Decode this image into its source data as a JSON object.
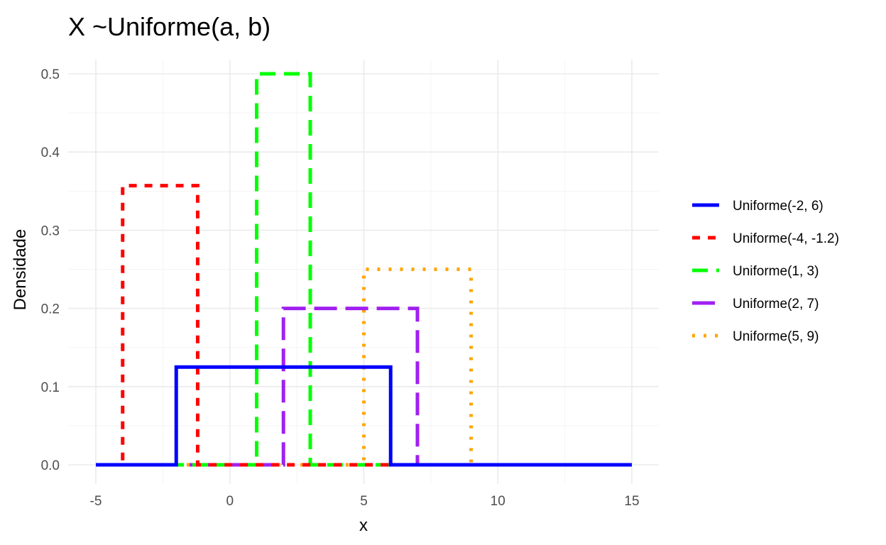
{
  "chart_data": {
    "type": "line",
    "title": "X ~Uniforme(a, b)",
    "xlabel": "x",
    "ylabel": "Densidade",
    "xlim": [
      -5,
      15
    ],
    "ylim": [
      0,
      0.5
    ],
    "x_ticks": [
      -5,
      0,
      5,
      10,
      15
    ],
    "y_ticks": [
      0.0,
      0.1,
      0.2,
      0.3,
      0.4,
      0.5
    ],
    "x_tick_labels": [
      "-5",
      "0",
      "5",
      "10",
      "15"
    ],
    "y_tick_labels": [
      "0.0",
      "0.1",
      "0.2",
      "0.3",
      "0.4",
      "0.5"
    ],
    "grid": true,
    "legend_position": "right",
    "series": [
      {
        "name": "Uniforme(-2, 6)",
        "a": -2,
        "b": 6,
        "density": 0.125,
        "color": "#0000ff",
        "linetype": "solid"
      },
      {
        "name": "Uniforme(-4, -1.2)",
        "a": -4,
        "b": -1.2,
        "density": 0.357,
        "color": "#ff0000",
        "linetype": "dashed"
      },
      {
        "name": "Uniforme(1, 3)",
        "a": 1,
        "b": 3,
        "density": 0.5,
        "color": "#00ff00",
        "linetype": "longdash"
      },
      {
        "name": "Uniforme(2, 7)",
        "a": 2,
        "b": 7,
        "density": 0.2,
        "color": "#a020f0",
        "linetype": "longerdash"
      },
      {
        "name": "Uniforme(5, 9)",
        "a": 5,
        "b": 9,
        "density": 0.25,
        "color": "#ffa500",
        "linetype": "dotted"
      }
    ]
  }
}
